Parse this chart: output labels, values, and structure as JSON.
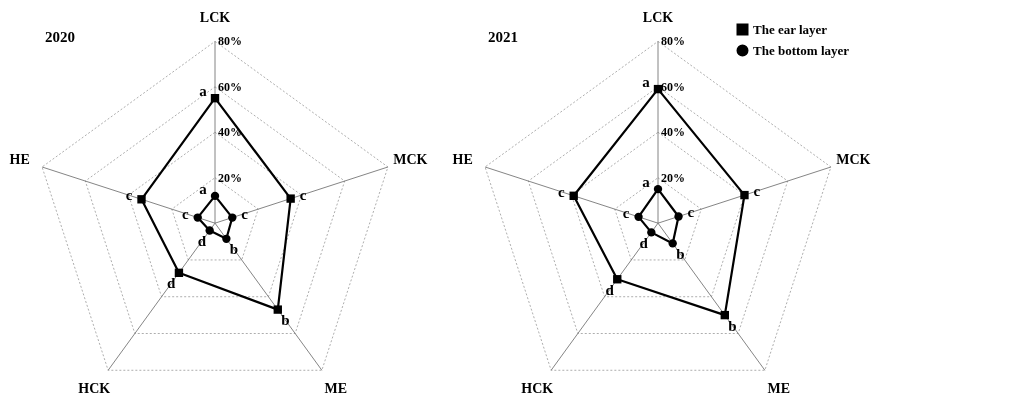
{
  "chart_data": [
    {
      "type": "radar",
      "title": "2020",
      "categories": [
        "LCK",
        "MCK",
        "ME",
        "HCK",
        "HE"
      ],
      "ylim": [
        0,
        80
      ],
      "yticks": [
        {
          "value": 20,
          "label": "20%"
        },
        {
          "value": 40,
          "label": "40%"
        },
        {
          "value": 60,
          "label": "60%"
        },
        {
          "value": 80,
          "label": "80%"
        }
      ],
      "grid": true,
      "line_style": "solid",
      "series": [
        {
          "color": "#000000",
          "marker": "square",
          "values": [
            55,
            35,
            47,
            27,
            34
          ],
          "value_labels": [
            "a",
            "c",
            "b",
            "d",
            "c"
          ]
        },
        {
          "color": "#000000",
          "marker": "circle",
          "values": [
            12,
            8,
            8.5,
            4,
            8
          ],
          "value_labels": [
            "a",
            "c",
            "b",
            "d",
            "c"
          ]
        }
      ]
    },
    {
      "type": "radar",
      "title": "2021",
      "categories": [
        "LCK",
        "MCK",
        "ME",
        "HCK",
        "HE"
      ],
      "ylim": [
        0,
        80
      ],
      "yticks": [
        {
          "value": 20,
          "label": "20%"
        },
        {
          "value": 40,
          "label": "40%"
        },
        {
          "value": 60,
          "label": "60%"
        },
        {
          "value": 80,
          "label": "80%"
        }
      ],
      "grid": true,
      "legend": "top right",
      "line_style": "solid",
      "series": [
        {
          "name": "The ear layer",
          "color": "#000000",
          "marker": "square",
          "values": [
            59,
            40,
            50,
            30.5,
            39
          ],
          "value_labels": [
            "a",
            "c",
            "b",
            "d",
            "c"
          ]
        },
        {
          "name": "The bottom layer",
          "color": "#000000",
          "marker": "circle",
          "values": [
            15,
            9.5,
            11,
            5,
            9
          ],
          "value_labels": [
            "a",
            "c",
            "b",
            "d",
            "c"
          ]
        }
      ]
    }
  ]
}
